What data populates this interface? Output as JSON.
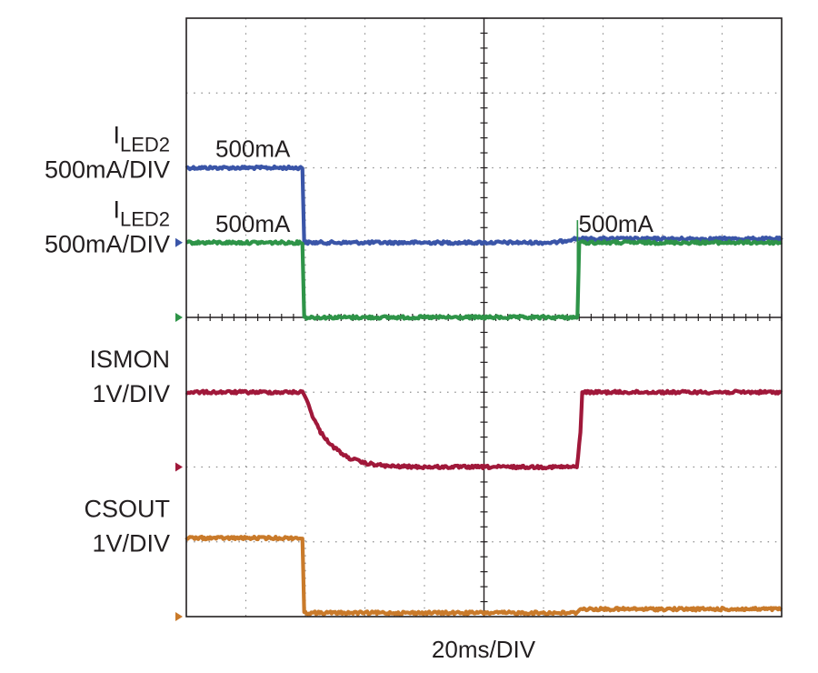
{
  "chart_data": {
    "type": "line",
    "title": "",
    "xlabel": "20ms/DIV",
    "x_divisions": 10,
    "y_divisions": 8,
    "time_per_div_ms": 20,
    "grid": true,
    "series": [
      {
        "name": "ILED2",
        "name_sub": "LED2",
        "name_main": "I",
        "scale": "500mA/DIV",
        "color": "#3a55a8",
        "marker_y_div": 5.0,
        "annotations": [
          {
            "text": "500mA",
            "x_div": 0.5
          }
        ],
        "points": [
          [
            0,
            6.0
          ],
          [
            1.95,
            6.0
          ],
          [
            1.98,
            5.0
          ],
          [
            6.2,
            5.0
          ],
          [
            6.5,
            5.05
          ],
          [
            10,
            5.05
          ]
        ],
        "spikes": [
          [
            6.57,
            5.2
          ]
        ]
      },
      {
        "name": "ILED2",
        "name_sub": "LED2",
        "name_main": "I",
        "scale": "500mA/DIV",
        "color": "#2e9448",
        "marker_y_div": 4.0,
        "annotations": [
          {
            "text": "500mA",
            "x_div": 0.5
          },
          {
            "text": "500mA",
            "x_div": 6.6
          }
        ],
        "points": [
          [
            0,
            5.0
          ],
          [
            1.95,
            5.0
          ],
          [
            1.98,
            4.0
          ],
          [
            6.2,
            4.0
          ],
          [
            6.57,
            4.0
          ],
          [
            6.6,
            5.0
          ],
          [
            10,
            5.0
          ]
        ],
        "spikes": [
          [
            6.57,
            5.3
          ]
        ]
      },
      {
        "name": "ISMON",
        "scale": "1V/DIV",
        "color": "#a0183a",
        "marker_y_div": 2.0,
        "annotations": [],
        "points": [
          [
            0,
            3.0
          ],
          [
            1.95,
            3.0
          ],
          [
            2.0,
            2.95
          ],
          [
            2.1,
            2.72
          ],
          [
            2.25,
            2.47
          ],
          [
            2.45,
            2.28
          ],
          [
            2.7,
            2.13
          ],
          [
            3.0,
            2.05
          ],
          [
            3.4,
            2.01
          ],
          [
            4.0,
            2.0
          ],
          [
            6.56,
            2.0
          ],
          [
            6.62,
            2.45
          ],
          [
            6.65,
            3.0
          ],
          [
            10,
            3.0
          ]
        ],
        "spikes": []
      },
      {
        "name": "CSOUT",
        "scale": "1V/DIV",
        "color": "#c97a2a",
        "marker_y_div": 0.0,
        "annotations": [],
        "points": [
          [
            0,
            1.05
          ],
          [
            1.95,
            1.05
          ],
          [
            1.98,
            0.05
          ],
          [
            6.55,
            0.05
          ],
          [
            6.6,
            0.1
          ],
          [
            10,
            0.1
          ]
        ],
        "spikes": []
      }
    ]
  }
}
